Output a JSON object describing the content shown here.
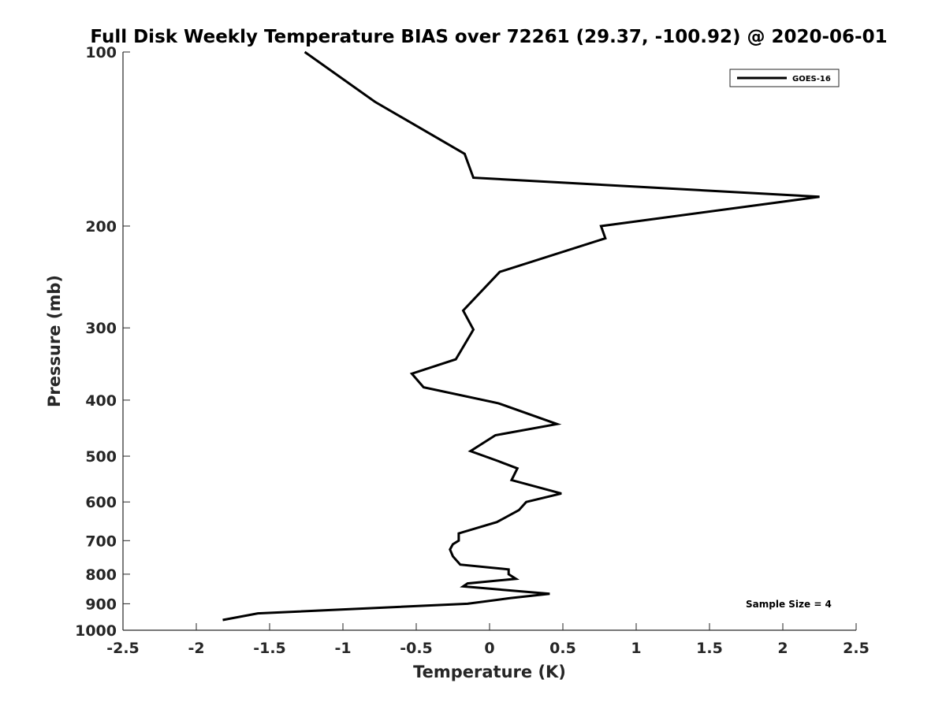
{
  "chart_data": {
    "type": "line",
    "title": "Full Disk Weekly Temperature BIAS over 72261 (29.37, -100.92) @ 2020-06-01",
    "xlabel": "Temperature (K)",
    "ylabel": "Pressure (mb)",
    "xlim": [
      -2.5,
      2.5
    ],
    "ylim": [
      100,
      1000
    ],
    "yscale": "log",
    "yreversed": true,
    "x_ticks": [
      "-2.5",
      "-2",
      "-1.5",
      "-1",
      "-0.5",
      "0",
      "0.5",
      "1",
      "1.5",
      "2",
      "2.5"
    ],
    "y_ticks": [
      "100",
      "200",
      "300",
      "400",
      "500",
      "600",
      "700",
      "800",
      "900",
      "1000"
    ],
    "x_tick_values": [
      -2.5,
      -2,
      -1.5,
      -1,
      -0.5,
      0,
      0.5,
      1,
      1.5,
      2,
      2.5
    ],
    "y_tick_values": [
      100,
      200,
      300,
      400,
      500,
      600,
      700,
      800,
      900,
      1000
    ],
    "grid": false,
    "legend_position": "top-right",
    "series": [
      {
        "name": "GOES-16",
        "color": "#000000",
        "x": [
          -1.26,
          -0.78,
          -0.17,
          -0.11,
          2.25,
          0.76,
          0.79,
          0.07,
          -0.18,
          -0.11,
          -0.12,
          -0.23,
          -0.53,
          -0.45,
          0.06,
          0.46,
          0.04,
          -0.13,
          0.06,
          0.19,
          0.15,
          0.49,
          0.25,
          0.2,
          0.05,
          -0.21,
          -0.21,
          -0.25,
          -0.27,
          -0.25,
          -0.2,
          0.13,
          0.13,
          0.18,
          -0.15,
          -0.18,
          0.41,
          0.14,
          -0.15,
          -1.58,
          -1.82
        ],
        "y": [
          100,
          122,
          150,
          165,
          178,
          200,
          210,
          240,
          280,
          302,
          305,
          340,
          360,
          380,
          405,
          440,
          460,
          490,
          510,
          525,
          550,
          580,
          600,
          620,
          650,
          680,
          700,
          710,
          725,
          745,
          770,
          785,
          800,
          815,
          830,
          840,
          865,
          880,
          900,
          935,
          960
        ]
      }
    ],
    "annotation": "Sample Size = 4"
  }
}
